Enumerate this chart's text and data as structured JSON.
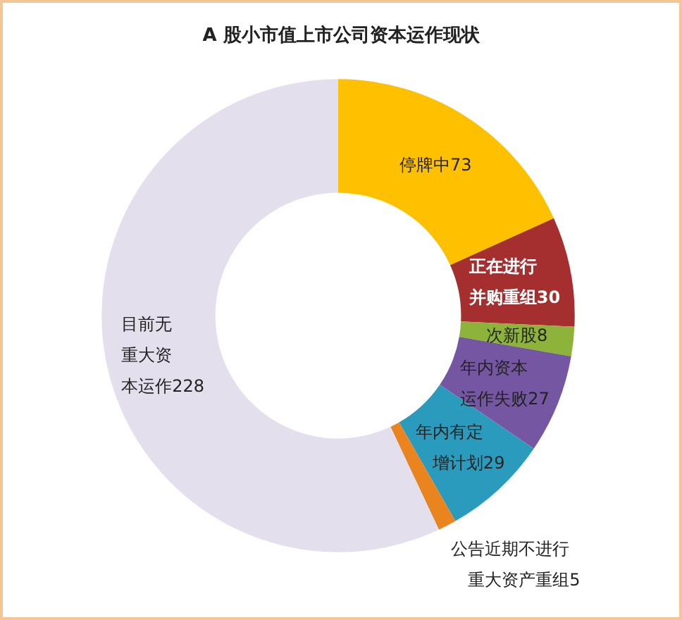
{
  "chart_data": {
    "type": "donut",
    "title": "A 股小市值上市公司资本运作现状",
    "categories": [
      "停牌中",
      "正在进行并购重组",
      "次新股",
      "年内资本运作失败",
      "年内有定增计划",
      "公告近期不进行重大资产重组",
      "目前无重大资本运作"
    ],
    "values": [
      73,
      30,
      8,
      27,
      29,
      5,
      228
    ],
    "colors": [
      "#ffc000",
      "#a52f2f",
      "#8db33a",
      "#7556a3",
      "#2b9bbd",
      "#e9841f",
      "#e4dfec"
    ],
    "data_labels": true
  }
}
